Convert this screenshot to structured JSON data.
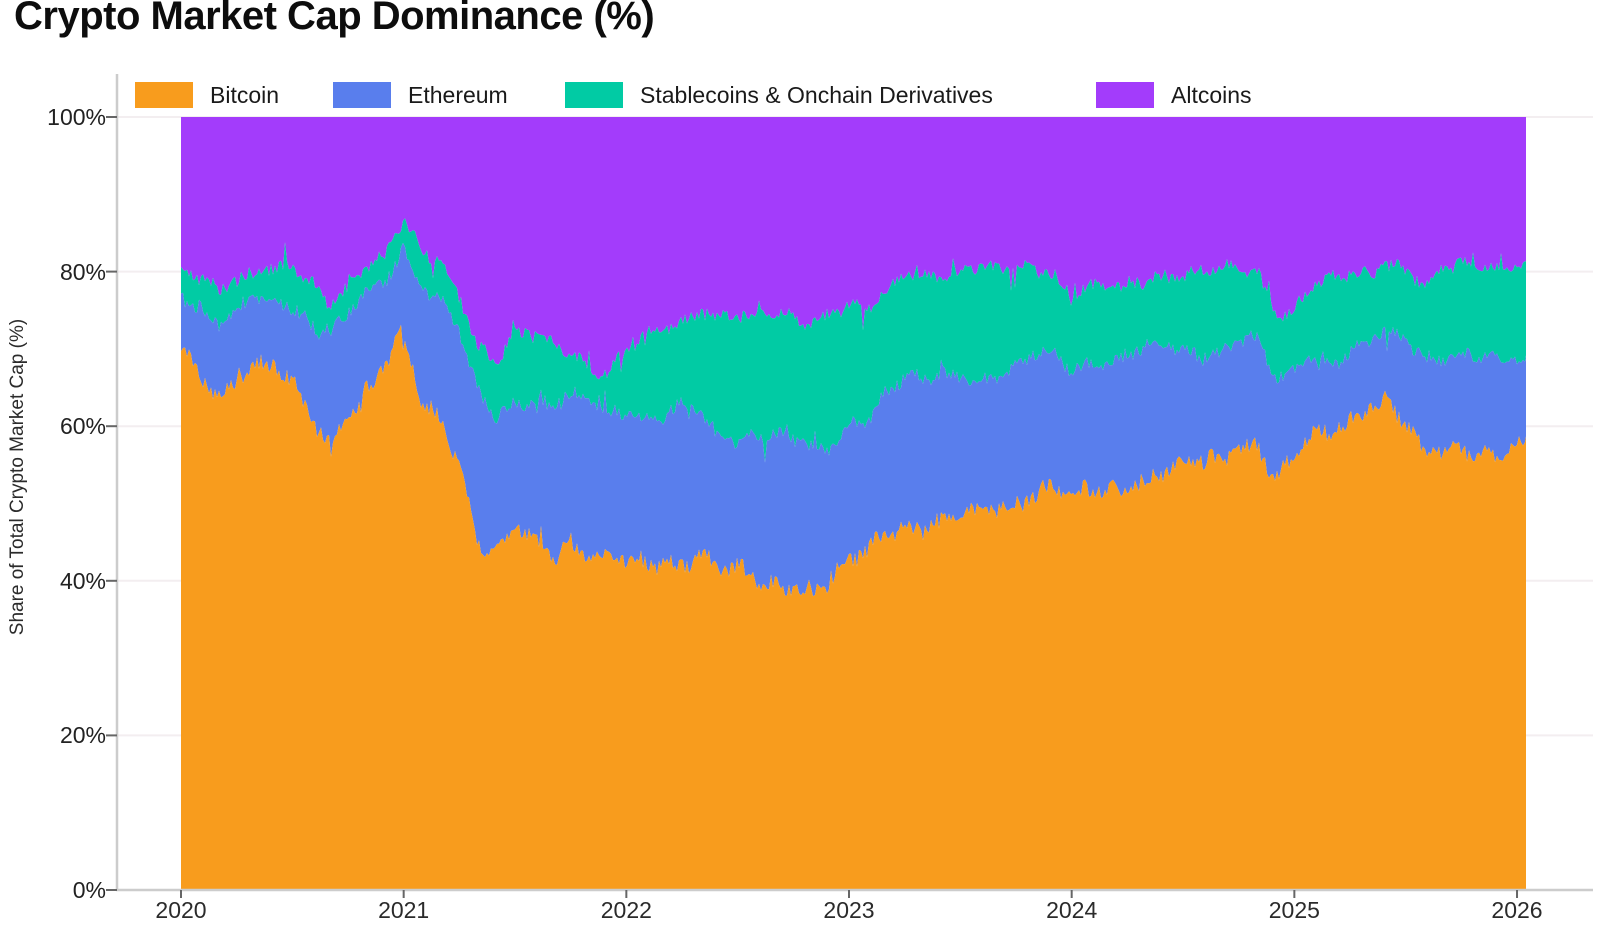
{
  "page_title": "Crypto Market Cap Dominance (%)",
  "chart_data": {
    "type": "area",
    "stacked": true,
    "normalized_percent": true,
    "title": "Crypto Market Cap Dominance (%)",
    "ylabel": "Share of Total Crypto Market Cap (%)",
    "xlabel": "",
    "legend_position": "top",
    "grid": "horizontal-faint",
    "xlim": [
      2020,
      2026.04
    ],
    "ylim": [
      0,
      100
    ],
    "x_ticks": [
      "2020",
      "2021",
      "2022",
      "2023",
      "2024",
      "2025",
      "2026"
    ],
    "x_tick_years": [
      2020,
      2021,
      2022,
      2023,
      2024,
      2025,
      2026
    ],
    "y_ticks": [
      "0%",
      "20%",
      "40%",
      "60%",
      "80%",
      "100%"
    ],
    "y_tick_values": [
      0,
      20,
      40,
      60,
      80,
      100
    ],
    "x": [
      2020.0,
      2020.083,
      2020.167,
      2020.25,
      2020.333,
      2020.417,
      2020.5,
      2020.583,
      2020.667,
      2020.75,
      2020.833,
      2020.917,
      2021.0,
      2021.083,
      2021.167,
      2021.25,
      2021.333,
      2021.417,
      2021.5,
      2021.583,
      2021.667,
      2021.75,
      2021.833,
      2021.917,
      2022.0,
      2022.083,
      2022.167,
      2022.25,
      2022.333,
      2022.417,
      2022.5,
      2022.583,
      2022.667,
      2022.75,
      2022.833,
      2022.917,
      2023.0,
      2023.083,
      2023.167,
      2023.25,
      2023.333,
      2023.417,
      2023.5,
      2023.583,
      2023.667,
      2023.75,
      2023.833,
      2023.917,
      2024.0,
      2024.083,
      2024.167,
      2024.25,
      2024.333,
      2024.417,
      2024.5,
      2024.583,
      2024.667,
      2024.75,
      2024.833,
      2024.917,
      2025.0,
      2025.083,
      2025.167,
      2025.25,
      2025.333,
      2025.417,
      2025.5,
      2025.583,
      2025.667,
      2025.75,
      2025.833,
      2025.917,
      2026.0,
      2026.04
    ],
    "series": [
      {
        "name": "Bitcoin",
        "color": "#F89C1D",
        "values": [
          70.5,
          66.5,
          64.5,
          66,
          68,
          67,
          65.5,
          61,
          58,
          61.5,
          64.5,
          67.5,
          71.5,
          63,
          61.5,
          56,
          45,
          43,
          46.5,
          45.5,
          43.5,
          45.5,
          43,
          42.5,
          42,
          42,
          42.5,
          42.5,
          43.5,
          41.5,
          41,
          40,
          39.5,
          39.7,
          39,
          40,
          42,
          43.5,
          46,
          47.5,
          47,
          48,
          48.5,
          48.5,
          49.5,
          50.5,
          51.5,
          52.5,
          50.5,
          51.5,
          51.5,
          52.5,
          53.5,
          54.5,
          55,
          55,
          55.5,
          57.5,
          58,
          53.5,
          55.5,
          58.5,
          59,
          61,
          63,
          63.5,
          60,
          56,
          56.5,
          57.5,
          57,
          56.5,
          57,
          57
        ]
      },
      {
        "name": "Ethereum",
        "color": "#597EED",
        "values": [
          7,
          9,
          8.5,
          8.5,
          8.5,
          9.5,
          10.5,
          12.5,
          13.5,
          12.5,
          12.5,
          11.5,
          12,
          15.5,
          14.5,
          16,
          19,
          18,
          17,
          18.5,
          19,
          18.5,
          19.5,
          19.5,
          20,
          19.5,
          19,
          20,
          18,
          16.5,
          17.5,
          19.5,
          19.5,
          18.5,
          17.5,
          17,
          18.5,
          17.5,
          18.5,
          19,
          18.5,
          18.5,
          18,
          17.5,
          17.5,
          17,
          17.5,
          17,
          17,
          17,
          17.5,
          16.5,
          16.5,
          15.5,
          15,
          14.5,
          14.5,
          13.5,
          13,
          12,
          11.5,
          11,
          9.5,
          8.5,
          7.5,
          8.5,
          11,
          13,
          13,
          12,
          12,
          12,
          11.5,
          11.5
        ]
      },
      {
        "name": "Stablecoins & Onchain Derivatives",
        "color": "#01CBA4",
        "values": [
          3,
          3,
          4.5,
          4.5,
          4,
          4,
          4.5,
          4.5,
          4,
          4,
          4,
          3.5,
          3,
          4,
          4.5,
          5,
          6.5,
          8,
          8.5,
          7.5,
          7.5,
          6,
          5.5,
          5.5,
          7.5,
          10,
          11,
          10.5,
          14,
          16.5,
          16,
          14.5,
          15.5,
          15.5,
          17.5,
          18,
          15.5,
          14,
          12.5,
          13,
          14,
          13.5,
          13.5,
          14.5,
          13,
          12.5,
          11.5,
          10.5,
          10,
          9.5,
          8.5,
          9,
          9,
          9.5,
          10,
          10.5,
          10,
          9,
          9,
          9.5,
          8.5,
          9,
          10,
          10,
          9,
          9.5,
          9.5,
          9.5,
          10.5,
          11,
          12,
          12.5,
          12.5,
          12.7
        ]
      },
      {
        "name": "Altcoins",
        "color": "#A33CFB",
        "values": [
          19.5,
          21.5,
          22.5,
          21,
          19.5,
          19.5,
          19.5,
          22,
          24.5,
          22,
          19,
          17.5,
          13.5,
          17.5,
          19.5,
          23,
          29.5,
          31,
          28,
          28.5,
          30,
          30,
          32,
          32.5,
          30.5,
          28.5,
          27.5,
          27,
          24.5,
          25.5,
          25.5,
          26,
          25.5,
          26.3,
          26,
          25,
          24,
          25,
          23,
          20.5,
          20.5,
          20,
          20,
          19.5,
          20,
          20,
          19.5,
          20,
          22.5,
          22,
          22.5,
          22,
          21,
          20.5,
          20,
          20,
          20,
          20,
          20,
          25,
          24.5,
          21.5,
          21.5,
          20.5,
          20.5,
          18.5,
          19.5,
          21.5,
          20,
          19.5,
          19,
          19,
          19,
          18.8
        ]
      }
    ],
    "style_colors": {
      "axis_spine": "#cccccc",
      "gridline": "#f3eef0",
      "tick_mark": "#666666",
      "text": "#1a1a1a"
    }
  }
}
